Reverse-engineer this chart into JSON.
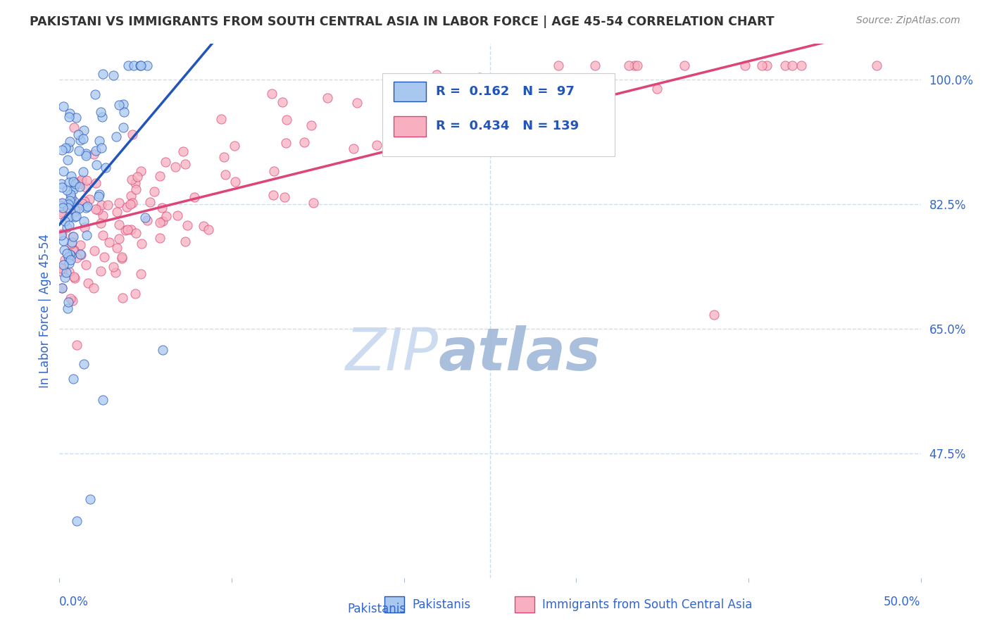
{
  "title": "PAKISTANI VS IMMIGRANTS FROM SOUTH CENTRAL ASIA IN LABOR FORCE | AGE 45-54 CORRELATION CHART",
  "source": "Source: ZipAtlas.com",
  "ylabel": "In Labor Force | Age 45-54",
  "xlim": [
    0.0,
    0.5
  ],
  "ylim": [
    0.3,
    1.05
  ],
  "blue_R": 0.162,
  "blue_N": 97,
  "pink_R": 0.434,
  "pink_N": 139,
  "blue_color": "#A8C8F0",
  "pink_color": "#F8B0C0",
  "trendline_blue": "#2255BB",
  "trendline_pink": "#DD4477",
  "trendline_dashed_color": "#99BBDD",
  "watermark_zip_color": "#C8D8F0",
  "watermark_atlas_color": "#A0B8D8",
  "background_color": "#FFFFFF",
  "grid_color": "#CCDDEE",
  "axis_color": "#3366CC",
  "title_color": "#333333",
  "legend_text_color": "#2255BB",
  "ytick_values": [
    1.0,
    0.825,
    0.65,
    0.475
  ],
  "ytick_labels": [
    "100.0%",
    "82.5%",
    "65.0%",
    "47.5%"
  ]
}
